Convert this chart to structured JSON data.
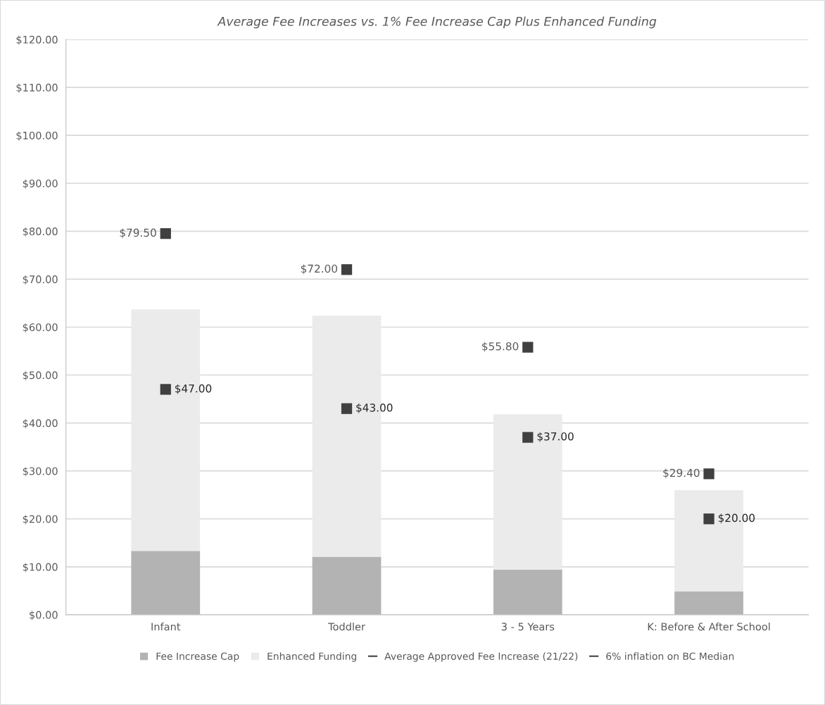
{
  "chart_data": {
    "type": "bar",
    "title": "Average Fee Increases vs. 1% Fee Increase Cap Plus Enhanced Funding",
    "categories": [
      "Infant",
      "Toddler",
      "3 - 5 Years",
      "K: Before & After School"
    ],
    "stacked": true,
    "series": [
      {
        "name": "Fee Increase Cap",
        "color": "#b3b3b3",
        "values": [
          13.3,
          12.1,
          9.4,
          4.9
        ]
      },
      {
        "name": "Enhanced Funding",
        "color": "#ebebeb",
        "values": [
          50.4,
          50.3,
          32.4,
          21.1
        ]
      },
      {
        "name": "Average Approved Fee Increase (21/22)",
        "type": "scatter",
        "marker": "square",
        "color": "#404040",
        "values": [
          47.0,
          43.0,
          37.0,
          20.0
        ],
        "value_labels": [
          "$47.00",
          "$43.00",
          "$37.00",
          "$20.00"
        ]
      },
      {
        "name": "6% inflation on BC Median",
        "type": "scatter",
        "marker": "square",
        "color": "#404040",
        "values": [
          79.5,
          72.0,
          55.8,
          29.4
        ],
        "value_labels": [
          "$79.50",
          "$72.00",
          "$55.80",
          "$29.40"
        ]
      }
    ],
    "ylim": [
      0,
      120
    ],
    "yticks": [
      {
        "value": 0,
        "label": "$0.00"
      },
      {
        "value": 10,
        "label": "$10.00"
      },
      {
        "value": 20,
        "label": "$20.00"
      },
      {
        "value": 30,
        "label": "$30.00"
      },
      {
        "value": 40,
        "label": "$40.00"
      },
      {
        "value": 50,
        "label": "$50.00"
      },
      {
        "value": 60,
        "label": "$60.00"
      },
      {
        "value": 70,
        "label": "$70.00"
      },
      {
        "value": 80,
        "label": "$80.00"
      },
      {
        "value": 90,
        "label": "$90.00"
      },
      {
        "value": 100,
        "label": "$100.00"
      },
      {
        "value": 110,
        "label": "$110.00"
      },
      {
        "value": 120,
        "label": "$120.00"
      }
    ],
    "grid": "y",
    "legend": "bottom"
  }
}
